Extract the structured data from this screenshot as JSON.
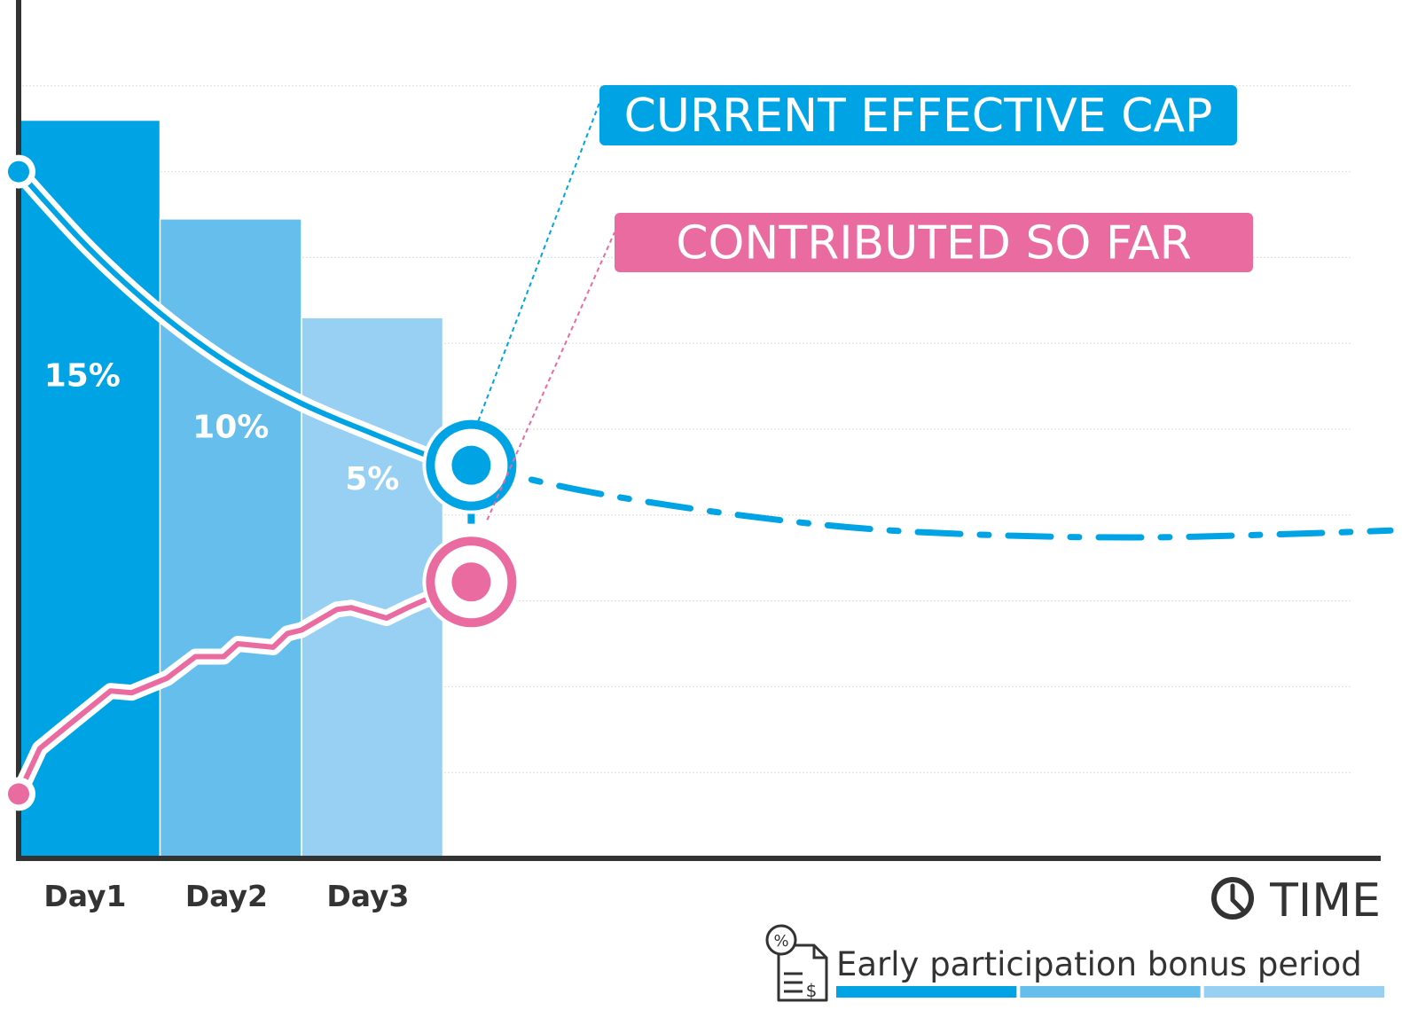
{
  "colors": {
    "cap": "#00A3E4",
    "contributed": "#E96BA0",
    "day1": "#00A3E4",
    "day2": "#66BEEC",
    "day3": "#98D0F3",
    "axis": "#333333",
    "grid": "#dddddd"
  },
  "chart_data": {
    "type": "bar",
    "categories": [
      "Day1",
      "Day2",
      "Day3"
    ],
    "values": [
      15,
      10,
      5
    ],
    "value_labels": [
      "15%",
      "10%",
      "5%"
    ],
    "series": [
      {
        "name": "CURRENT EFFECTIVE CAP",
        "type": "line",
        "x": [
          0,
          0.5,
          1,
          1.5,
          2,
          2.5,
          3,
          3.2
        ],
        "y": [
          80,
          71,
          63.5,
          57.5,
          53,
          49.5,
          46.3,
          45.8
        ],
        "projection": {
          "style": "dash-dot",
          "x": [
            3.2,
            4,
            5,
            6,
            7,
            8,
            9,
            9.7
          ],
          "y": [
            45.8,
            42.8,
            40.2,
            38.4,
            37.6,
            37.4,
            37.8,
            38.2
          ]
        }
      },
      {
        "name": "CONTRIBUTED SO FAR",
        "type": "line",
        "x": [
          0,
          0.15,
          0.35,
          0.65,
          0.8,
          1.05,
          1.25,
          1.45,
          1.55,
          1.8,
          1.9,
          2.0,
          2.25,
          2.35,
          2.6,
          2.75,
          3.0,
          3.2
        ],
        "y": [
          7.5,
          12.8,
          15.5,
          19.5,
          19.3,
          21.0,
          23.5,
          23.5,
          25.0,
          24.6,
          26.2,
          26.6,
          29.0,
          29.2,
          28.0,
          29.2,
          31.0,
          32.2
        ]
      }
    ],
    "xlabel": "TIME",
    "ylabel": "",
    "grid": true,
    "ylim": [
      0,
      100
    ]
  },
  "legend": {
    "bonus_label": "Early participation bonus period",
    "icon": "percent-document-icon",
    "time_icon": "clock-icon"
  }
}
